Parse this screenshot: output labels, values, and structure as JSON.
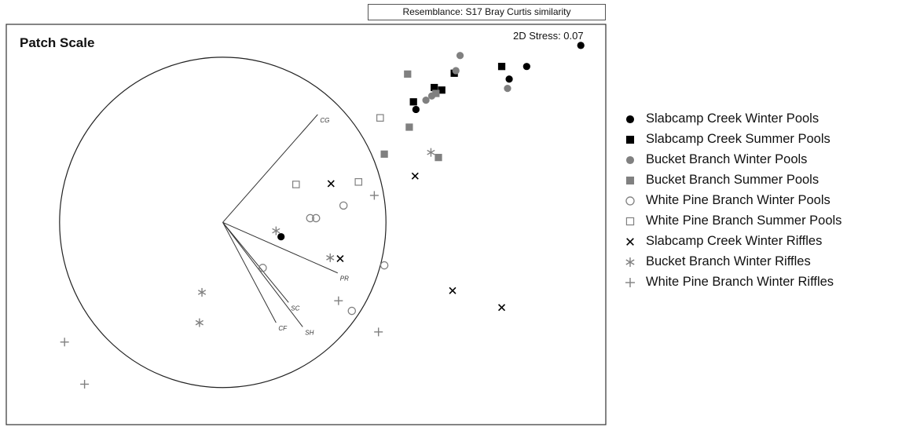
{
  "header": {
    "resemblance": "Resemblance: S17 Bray Curtis similarity",
    "panel_title": "Patch Scale",
    "stress": "2D Stress: 0.07"
  },
  "colors": {
    "black": "#000000",
    "gray": "#808080",
    "frame": "#333333"
  },
  "chart_data": {
    "type": "scatter",
    "title": "",
    "xlabel": "",
    "ylabel": "",
    "grid": false,
    "legend_position": "right",
    "xlim": [
      -2.6,
      4.6
    ],
    "ylim": [
      -2.4,
      2.35
    ],
    "series": [
      {
        "name": "Slabcamp Creek Winter Pools",
        "marker": "circle-filled",
        "color": "#000000",
        "points": [
          [
            4.3,
            2.1
          ],
          [
            3.65,
            1.85
          ],
          [
            3.44,
            1.7
          ],
          [
            2.32,
            1.34
          ],
          [
            0.7,
            -0.17
          ]
        ]
      },
      {
        "name": "Slabcamp Creek Summer Pools",
        "marker": "square-filled",
        "color": "#000000",
        "points": [
          [
            3.35,
            1.85
          ],
          [
            2.78,
            1.77
          ],
          [
            2.54,
            1.6
          ],
          [
            2.63,
            1.57
          ],
          [
            2.29,
            1.43
          ]
        ]
      },
      {
        "name": "Bucket Branch Winter Pools",
        "marker": "circle-filled",
        "color": "#808080",
        "points": [
          [
            2.85,
            1.98
          ],
          [
            2.8,
            1.8
          ],
          [
            3.42,
            1.59
          ],
          [
            2.51,
            1.5
          ],
          [
            2.44,
            1.45
          ]
        ]
      },
      {
        "name": "Bucket Branch Summer Pools",
        "marker": "square-filled",
        "color": "#808080",
        "points": [
          [
            2.22,
            1.76
          ],
          [
            2.56,
            1.53
          ],
          [
            2.24,
            1.13
          ],
          [
            1.94,
            0.81
          ],
          [
            2.59,
            0.77
          ]
        ]
      },
      {
        "name": "White Pine Branch Winter Pools",
        "marker": "circle-open",
        "color": "#808080",
        "points": [
          [
            1.45,
            0.2
          ],
          [
            1.05,
            0.05
          ],
          [
            1.12,
            0.05
          ],
          [
            1.94,
            -0.51
          ],
          [
            0.48,
            -0.54
          ],
          [
            1.55,
            -1.05
          ]
        ]
      },
      {
        "name": "White Pine Branch Summer Pools",
        "marker": "square-open",
        "color": "#808080",
        "points": [
          [
            1.89,
            1.24
          ],
          [
            1.63,
            0.48
          ],
          [
            0.88,
            0.45
          ]
        ]
      },
      {
        "name": "Slabcamp Creek Winter Riffles",
        "marker": "x",
        "color": "#000000",
        "points": [
          [
            1.3,
            0.46
          ],
          [
            2.31,
            0.55
          ],
          [
            1.41,
            -0.43
          ],
          [
            2.76,
            -0.81
          ],
          [
            3.35,
            -1.01
          ]
        ]
      },
      {
        "name": "Bucket Branch  Winter Riffles",
        "marker": "asterisk",
        "color": "#808080",
        "points": [
          [
            2.5,
            0.83
          ],
          [
            0.64,
            -0.1
          ],
          [
            1.29,
            -0.42
          ],
          [
            -0.25,
            -0.83
          ],
          [
            -0.28,
            -1.19
          ]
        ]
      },
      {
        "name": "White Pine Branch Winter Riffles",
        "marker": "plus",
        "color": "#808080",
        "points": [
          [
            1.82,
            0.32
          ],
          [
            1.39,
            -0.93
          ],
          [
            1.87,
            -1.3
          ],
          [
            -1.9,
            -1.42
          ],
          [
            -1.66,
            -1.92
          ]
        ]
      }
    ],
    "vectors_origin": [
      0,
      0
    ],
    "vectors": [
      {
        "label": "CG",
        "end": [
          1.14,
          1.28
        ]
      },
      {
        "label": "PR",
        "end": [
          1.38,
          -0.6
        ]
      },
      {
        "label": "SC",
        "end": [
          0.79,
          -0.95
        ]
      },
      {
        "label": "SH",
        "end": [
          0.96,
          -1.24
        ]
      },
      {
        "label": "CF",
        "end": [
          0.64,
          -1.19
        ]
      }
    ],
    "circle_radius": 1.96
  }
}
